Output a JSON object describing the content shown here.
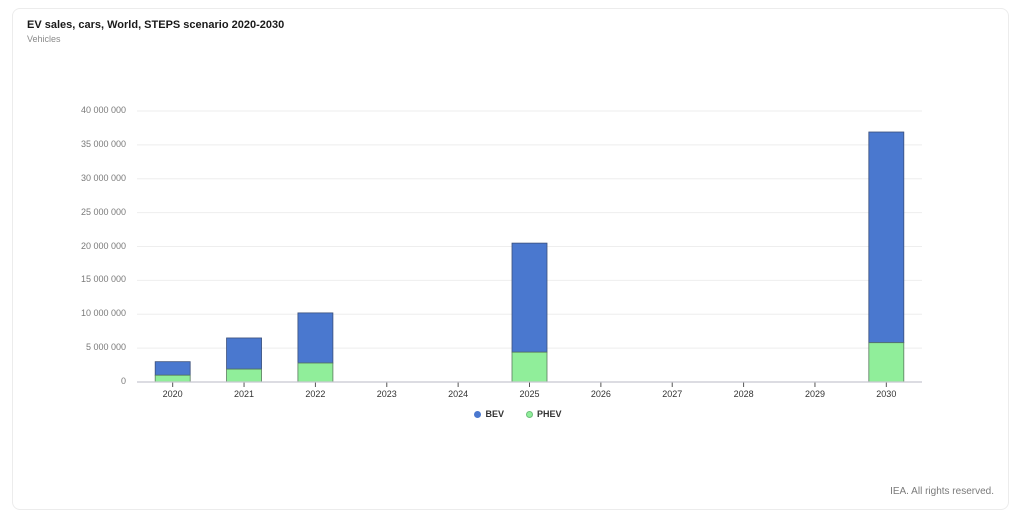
{
  "header": {
    "title": "EV sales, cars, World, STEPS scenario 2020-2030",
    "subtitle": "Vehicles"
  },
  "footer": {
    "credit": "IEA. All rights reserved."
  },
  "colors": {
    "BEV": "#4a78cf",
    "PHEV": "#90ee9a",
    "grid": "#eeeeee",
    "axis": "#c8c8d0"
  },
  "chart_data": {
    "type": "bar",
    "stacked": true,
    "title": "EV sales, cars, World, STEPS scenario 2020-2030",
    "subtitle": "Vehicles",
    "xlabel": "",
    "ylabel": "Vehicles",
    "ylim": [
      0,
      40000000
    ],
    "yticks": [
      0,
      5000000,
      10000000,
      15000000,
      20000000,
      25000000,
      30000000,
      35000000,
      40000000
    ],
    "ytick_labels": [
      "0",
      "5 000 000",
      "10 000 000",
      "15 000 000",
      "20 000 000",
      "25 000 000",
      "30 000 000",
      "35 000 000",
      "40 000 000"
    ],
    "categories": [
      "2020",
      "2021",
      "2022",
      "2023",
      "2024",
      "2025",
      "2026",
      "2027",
      "2028",
      "2029",
      "2030"
    ],
    "series": [
      {
        "name": "PHEV",
        "values": [
          1000000,
          1900000,
          2800000,
          null,
          null,
          4400000,
          null,
          null,
          null,
          null,
          5800000
        ]
      },
      {
        "name": "BEV",
        "values": [
          2000000,
          4600000,
          7400000,
          null,
          null,
          16100000,
          null,
          null,
          null,
          null,
          31100000
        ]
      }
    ],
    "legend": [
      "BEV",
      "PHEV"
    ],
    "legend_position": "bottom",
    "grid": true
  }
}
